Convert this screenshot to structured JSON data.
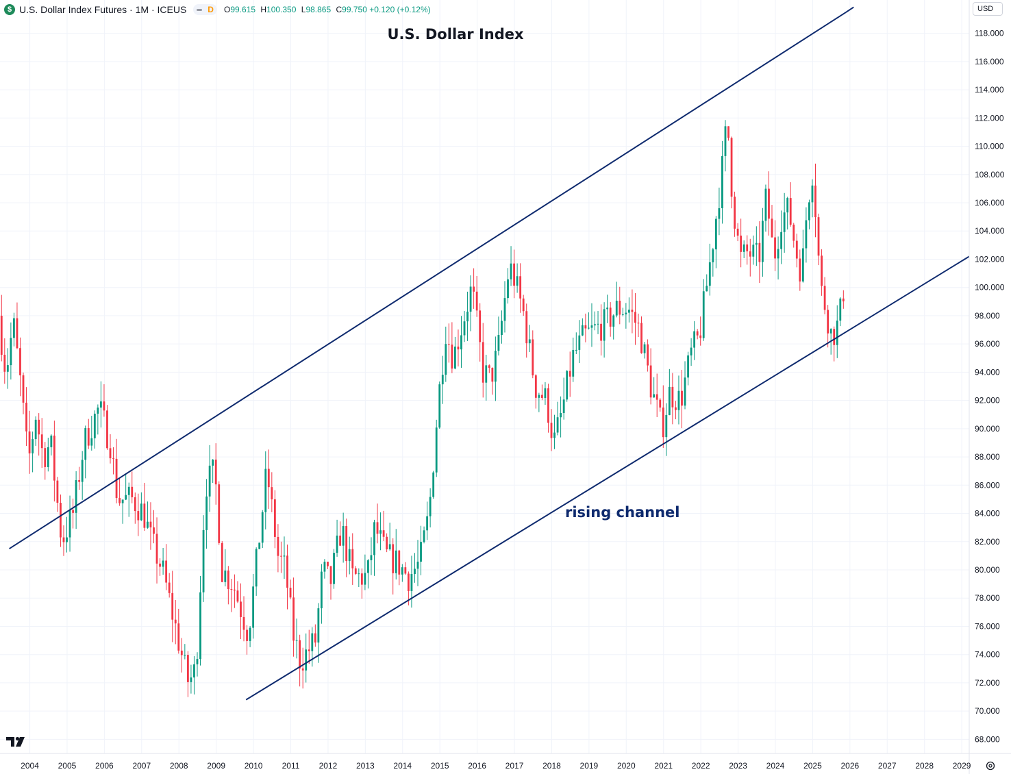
{
  "header": {
    "symbol_icon": "$",
    "symbol": "U.S. Dollar Index Futures · 1M · ICEUS",
    "flag": "D",
    "o_label": "O",
    "o_value": "99.615",
    "h_label": "H",
    "h_value": "100.350",
    "l_label": "L",
    "l_value": "98.865",
    "c_label": "C",
    "c_value": "99.750 +0.120 (+0.12%)"
  },
  "currency": "USD",
  "colors": {
    "up": "#089981",
    "down": "#f23645",
    "channel": "#0e2a6e",
    "grid": "#f0f3fa"
  },
  "chart_data": {
    "type": "candlestick",
    "title": "U.S. Dollar Index",
    "annotation": "rising channel",
    "y_ticks": [
      "68.000",
      "70.000",
      "72.000",
      "74.000",
      "76.000",
      "78.000",
      "80.000",
      "82.000",
      "84.000",
      "86.000",
      "88.000",
      "90.000",
      "92.000",
      "94.000",
      "96.000",
      "98.000",
      "100.000",
      "102.000",
      "104.000",
      "106.000",
      "108.000",
      "110.000",
      "112.000",
      "114.000",
      "116.000",
      "118.000"
    ],
    "x_ticks": [
      "2004",
      "2005",
      "2006",
      "2007",
      "2008",
      "2009",
      "2010",
      "2011",
      "2012",
      "2013",
      "2014",
      "2015",
      "2016",
      "2017",
      "2018",
      "2019",
      "2020",
      "2021",
      "2022",
      "2023",
      "2024",
      "2025",
      "2026",
      "2027",
      "2028",
      "2029"
    ],
    "ylim": [
      67.0,
      119.0
    ],
    "xlim": [
      2003.2,
      2029.2
    ],
    "anchors": [
      [
        2003.2,
        98.0
      ],
      [
        2003.4,
        94.0
      ],
      [
        2003.6,
        97.5
      ],
      [
        2003.8,
        93.0
      ],
      [
        2004.0,
        87.5
      ],
      [
        2004.2,
        91.0
      ],
      [
        2004.4,
        88.0
      ],
      [
        2004.6,
        89.0
      ],
      [
        2004.9,
        82.0
      ],
      [
        2005.2,
        84.0
      ],
      [
        2005.5,
        89.0
      ],
      [
        2005.9,
        91.5
      ],
      [
        2006.2,
        89.0
      ],
      [
        2006.4,
        85.0
      ],
      [
        2006.8,
        85.0
      ],
      [
        2007.1,
        84.0
      ],
      [
        2007.3,
        82.0
      ],
      [
        2007.6,
        80.0
      ],
      [
        2007.9,
        76.5
      ],
      [
        2008.2,
        73.0
      ],
      [
        2008.3,
        72.0
      ],
      [
        2008.5,
        73.0
      ],
      [
        2008.75,
        86.0
      ],
      [
        2009.0,
        87.0
      ],
      [
        2009.2,
        80.0
      ],
      [
        2009.5,
        79.0
      ],
      [
        2009.9,
        75.5
      ],
      [
        2010.1,
        80.0
      ],
      [
        2010.4,
        87.0
      ],
      [
        2010.7,
        81.0
      ],
      [
        2010.9,
        80.0
      ],
      [
        2011.1,
        75.5
      ],
      [
        2011.3,
        73.5
      ],
      [
        2011.7,
        75.0
      ],
      [
        2011.9,
        80.0
      ],
      [
        2012.1,
        79.0
      ],
      [
        2012.4,
        83.0
      ],
      [
        2012.7,
        79.5
      ],
      [
        2013.1,
        79.5
      ],
      [
        2013.3,
        83.0
      ],
      [
        2013.6,
        81.0
      ],
      [
        2013.9,
        80.5
      ],
      [
        2014.2,
        79.5
      ],
      [
        2014.5,
        80.5
      ],
      [
        2014.75,
        84.0
      ],
      [
        2015.0,
        92.0
      ],
      [
        2015.2,
        97.0
      ],
      [
        2015.4,
        95.0
      ],
      [
        2015.6,
        97.0
      ],
      [
        2015.9,
        100.0
      ],
      [
        2016.2,
        94.0
      ],
      [
        2016.4,
        93.5
      ],
      [
        2016.6,
        95.5
      ],
      [
        2016.9,
        101.5
      ],
      [
        2017.0,
        101.0
      ],
      [
        2017.3,
        98.0
      ],
      [
        2017.6,
        93.0
      ],
      [
        2017.9,
        92.0
      ],
      [
        2018.1,
        89.0
      ],
      [
        2018.3,
        91.0
      ],
      [
        2018.6,
        95.0
      ],
      [
        2018.9,
        96.5
      ],
      [
        2019.2,
        97.0
      ],
      [
        2019.5,
        97.5
      ],
      [
        2019.8,
        98.5
      ],
      [
        2020.1,
        98.5
      ],
      [
        2020.4,
        97.0
      ],
      [
        2020.7,
        93.0
      ],
      [
        2021.0,
        90.0
      ],
      [
        2021.2,
        92.5
      ],
      [
        2021.5,
        92.0
      ],
      [
        2021.8,
        95.5
      ],
      [
        2022.0,
        96.5
      ],
      [
        2022.3,
        102.0
      ],
      [
        2022.6,
        108.0
      ],
      [
        2022.75,
        112.0
      ],
      [
        2022.9,
        106.0
      ],
      [
        2023.1,
        102.0
      ],
      [
        2023.3,
        102.5
      ],
      [
        2023.6,
        102.0
      ],
      [
        2023.8,
        106.5
      ],
      [
        2024.0,
        102.0
      ],
      [
        2024.2,
        105.0
      ],
      [
        2024.4,
        105.5
      ],
      [
        2024.6,
        102.5
      ],
      [
        2024.75,
        101.0
      ],
      [
        2024.9,
        106.0
      ],
      [
        2025.05,
        108.5
      ],
      [
        2025.25,
        100.0
      ],
      [
        2025.4,
        98.5
      ],
      [
        2025.55,
        96.5
      ],
      [
        2025.75,
        97.5
      ],
      [
        2025.85,
        99.75
      ]
    ],
    "channel_lines": [
      {
        "name": "upper",
        "x1": 2003.45,
        "y1": 81.5,
        "x2": 2025.9,
        "y2": 119.5
      },
      {
        "name": "upper-continued",
        "x1": 2025.9,
        "y1": 119.5,
        "x2": 2026.1,
        "y2": 119.85
      },
      {
        "name": "lower",
        "x1": 2009.8,
        "y1": 70.8,
        "x2": 2029.2,
        "y2": 102.2
      }
    ]
  }
}
